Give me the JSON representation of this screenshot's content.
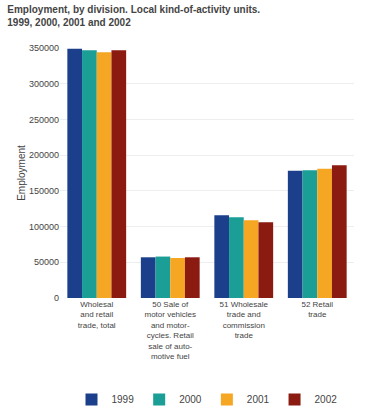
{
  "chart_data": {
    "type": "bar",
    "title": "Employment, by division. Local kind-of-activity units.",
    "subtitle": "1999, 2000, 2001 and 2002",
    "ylabel": "Employment",
    "categories": [
      "Wholesal\nand retail\ntrade, total",
      "50 Sale of\nmotor vehicles\nand motor-\ncycles. Retail\nsale of auto-\nmotive fuel",
      "51 Wholesale\ntrade and\ncommission\ntrade",
      "52 Retail\ntrade"
    ],
    "series": [
      {
        "name": "1999",
        "color": "#1c3f8c",
        "values": [
          349000,
          57000,
          116000,
          178000
        ]
      },
      {
        "name": "2000",
        "color": "#1a9e96",
        "values": [
          347000,
          58000,
          113000,
          179000
        ]
      },
      {
        "name": "2001",
        "color": "#f5a623",
        "values": [
          344000,
          56000,
          109000,
          181000
        ]
      },
      {
        "name": "2002",
        "color": "#8b1a10",
        "values": [
          347000,
          57000,
          106000,
          186000
        ]
      }
    ],
    "ylim": [
      0,
      350000
    ],
    "yticks": [
      0,
      50000,
      100000,
      150000,
      200000,
      250000,
      300000,
      350000
    ],
    "grid": true,
    "legend": "bottom"
  }
}
